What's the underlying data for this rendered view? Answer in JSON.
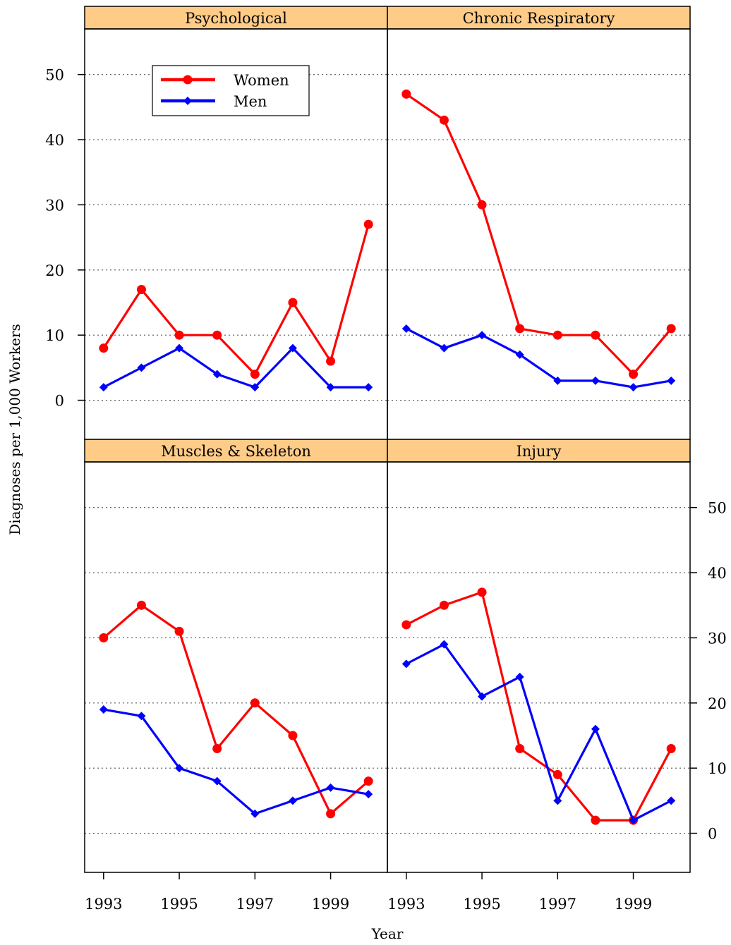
{
  "chart_data": {
    "type": "line",
    "xlabel": "Year",
    "ylabel": "Diagnoses per 1,000 Workers",
    "x": [
      1993,
      1994,
      1995,
      1996,
      1997,
      1998,
      1999,
      2000
    ],
    "x_tick_labels": [
      "1993",
      "1995",
      "1997",
      "1999"
    ],
    "y_tick_labels": [
      "0",
      "10",
      "20",
      "30",
      "40",
      "50"
    ],
    "xlim": [
      1992.5,
      2000.5
    ],
    "ylim": [
      -6,
      57
    ],
    "grid": "horizontal dotted",
    "legend": {
      "placement": "top-left of first panel",
      "entries": [
        {
          "label": "Women",
          "color": "#ff0000",
          "marker": "circle"
        },
        {
          "label": "Men",
          "color": "#0000ff",
          "marker": "diamond"
        }
      ]
    },
    "colors": {
      "women": "#ff0000",
      "men": "#0000ff",
      "strip": "#ffcc88"
    },
    "panels": [
      {
        "title": "Psychological",
        "series": [
          {
            "name": "Women",
            "values": [
              8,
              17,
              10,
              10,
              4,
              15,
              6,
              27
            ]
          },
          {
            "name": "Men",
            "values": [
              2,
              5,
              8,
              4,
              2,
              8,
              2,
              2
            ]
          }
        ]
      },
      {
        "title": "Chronic Respiratory",
        "series": [
          {
            "name": "Women",
            "values": [
              47,
              43,
              30,
              11,
              10,
              10,
              4,
              11
            ]
          },
          {
            "name": "Men",
            "values": [
              11,
              8,
              10,
              7,
              3,
              3,
              2,
              3
            ]
          }
        ]
      },
      {
        "title": "Muscles & Skeleton",
        "series": [
          {
            "name": "Women",
            "values": [
              30,
              35,
              31,
              13,
              20,
              15,
              3,
              8
            ]
          },
          {
            "name": "Men",
            "values": [
              19,
              18,
              10,
              8,
              3,
              5,
              7,
              6
            ]
          }
        ]
      },
      {
        "title": "Injury",
        "series": [
          {
            "name": "Women",
            "values": [
              32,
              35,
              37,
              13,
              9,
              2,
              2,
              13
            ]
          },
          {
            "name": "Men",
            "values": [
              26,
              29,
              21,
              24,
              5,
              16,
              2,
              5
            ]
          }
        ]
      }
    ]
  }
}
